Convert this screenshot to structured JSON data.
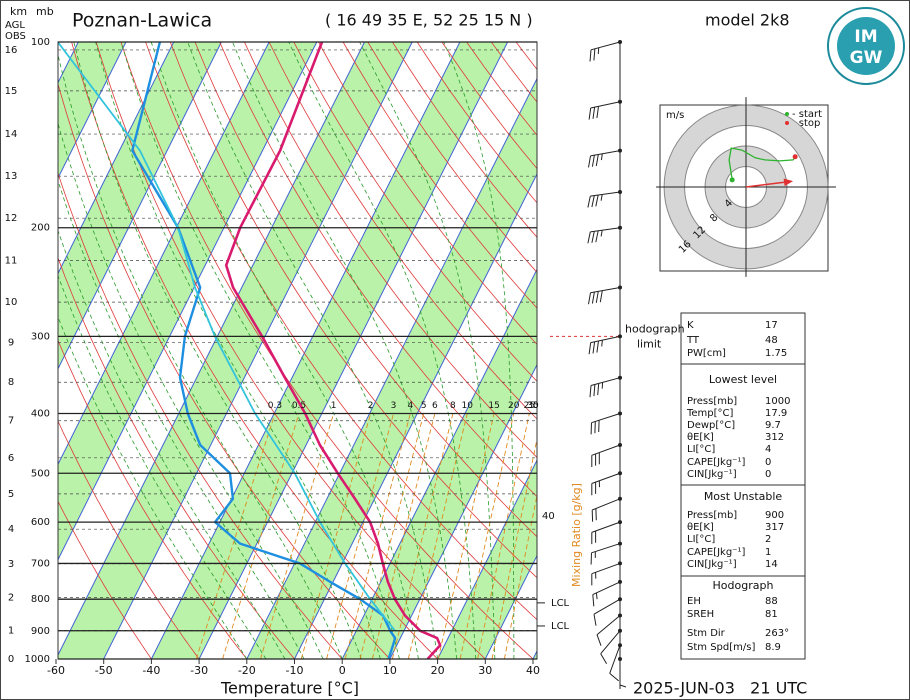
{
  "chart_data": {
    "type": "skewt",
    "title": "Poznan-Lawica",
    "location": "( 16 49 35 E, 52 25 15 N )",
    "model": "model 2k8",
    "valid_time": "2025-JUN-03   21 UTC",
    "xlabel": "Temperature [°C]",
    "corner": {
      "km": "km",
      "mb": "mb",
      "agl": "AGL",
      "obs": "OBS"
    },
    "logo": {
      "top": "IM",
      "bottom": "GW"
    },
    "xlim": [
      -60,
      40
    ],
    "xticks": [
      -60,
      -50,
      -40,
      -30,
      -20,
      -10,
      0,
      10,
      20,
      30,
      40
    ],
    "ylim": [
      1000,
      100
    ],
    "yticks": [
      100,
      200,
      300,
      400,
      500,
      600,
      700,
      800,
      900,
      1000
    ],
    "km_axis": {
      "ticks": [
        0,
        1,
        2,
        3,
        4,
        5,
        6,
        7,
        8,
        9,
        10,
        11,
        12,
        13,
        14,
        15,
        16
      ],
      "pressures": [
        1000,
        899,
        795,
        701,
        616,
        540,
        472,
        411,
        356,
        307,
        264,
        226,
        193,
        165,
        141,
        120,
        103
      ]
    },
    "series": [
      {
        "color": "#d81b6e",
        "pressures": [
          1000,
          950,
          925,
          900,
          850,
          800,
          750,
          700,
          650,
          600,
          550,
          500,
          450,
          400,
          350,
          300,
          250,
          230,
          200,
          150,
          100
        ],
        "values": [
          17.9,
          19.1,
          17.7,
          13.4,
          8.6,
          4.8,
          1.5,
          -1.5,
          -4.6,
          -8.5,
          -14.1,
          -20.4,
          -27.1,
          -33.5,
          -41.5,
          -50.6,
          -61.8,
          -65.6,
          -66.6,
          -66.3,
          -68.9
        ]
      },
      {
        "color": "#1e8fe0",
        "pressures": [
          1000,
          950,
          925,
          900,
          850,
          800,
          750,
          700,
          650,
          600,
          550,
          500,
          450,
          400,
          350,
          300,
          250,
          200,
          150,
          100
        ],
        "values": [
          9.7,
          9.2,
          8.9,
          7.1,
          4,
          -2.5,
          -10.6,
          -18.9,
          -33.5,
          -41,
          -39.7,
          -43,
          -52.2,
          -58.1,
          -63.5,
          -66.8,
          -68.7,
          -79.6,
          -97.3,
          -102.9
        ]
      },
      {
        "color": "#33c4dc",
        "pressures": [
          900,
          800,
          700,
          600,
          500,
          400,
          300,
          250,
          200,
          150,
          100
        ],
        "values": [
          8.1,
          -0.4,
          -9.4,
          -19,
          -29.4,
          -44,
          -60.5,
          -69.8,
          -79.6,
          -95.7,
          -124.3
        ]
      }
    ],
    "mixing_ratio": {
      "label": "Mixing Ratio [g/kg]",
      "values": [
        0.3,
        0.5,
        1,
        2,
        3,
        4,
        5,
        6,
        8,
        10,
        15,
        20,
        25,
        30,
        35
      ],
      "side_label": 40
    },
    "lcl": [
      {
        "label": "LCL",
        "pressure": 811
      },
      {
        "label": "LCL",
        "pressure": 884
      }
    ],
    "hodograph_limit": {
      "text": [
        "hodograph",
        "limit"
      ],
      "pressure": 300
    },
    "winds": {
      "pressures": [
        100,
        125,
        150,
        175,
        200,
        250,
        300,
        350,
        400,
        450,
        500,
        550,
        600,
        650,
        700,
        750,
        800,
        850,
        900,
        950,
        1000
      ],
      "directions": [
        255,
        258,
        260,
        262,
        262,
        260,
        258,
        255,
        252,
        250,
        250,
        248,
        250,
        252,
        250,
        245,
        240,
        230,
        220,
        200,
        180
      ],
      "speeds": [
        25,
        30,
        35,
        35,
        35,
        40,
        35,
        35,
        30,
        30,
        25,
        20,
        20,
        15,
        15,
        15,
        10,
        10,
        10,
        10,
        5
      ]
    },
    "hodograph": {
      "unit": "m/s",
      "rings": [
        4,
        8,
        12,
        16
      ],
      "legend_start": "- start",
      "legend_stop": "- stop",
      "start_color": "#2db32d",
      "stop_color": "#e03030",
      "u": [
        -2.7,
        -3.3,
        -2.9,
        -0.8,
        1.8,
        3.7,
        6.6,
        9.2,
        9.6
      ],
      "v": [
        1.4,
        5.3,
        7.6,
        7.2,
        5.7,
        5.3,
        5.1,
        5.3,
        5.9
      ]
    },
    "indices": [
      {
        "rows": [
          [
            "K",
            17
          ],
          [
            "TT",
            48
          ],
          [
            "PW[cm]",
            1.75
          ]
        ]
      },
      {
        "title": "Lowest level",
        "rows": [
          [
            "Press[mb]",
            1000
          ],
          [
            "Temp[°C]",
            17.9
          ],
          [
            "Dewp[°C]",
            9.7
          ],
          [
            "θE[K]",
            312
          ],
          [
            "LI[°C]",
            4
          ],
          [
            "CAPE[Jkg⁻¹]",
            0
          ],
          [
            "CIN[Jkg⁻¹]",
            0
          ]
        ]
      },
      {
        "title": "Most Unstable",
        "rows": [
          [
            "Press[mb]",
            900
          ],
          [
            "θE[K]",
            317
          ],
          [
            "LI[°C]",
            2
          ],
          [
            "CAPE[Jkg⁻¹]",
            1
          ],
          [
            "CIN[Jkg⁻¹]",
            14
          ]
        ]
      },
      {
        "title": "Hodograph",
        "rows": [
          [
            "EH",
            88
          ],
          [
            "SREH",
            81
          ],
          [
            "Stm Dir",
            {
              "value": 263,
              "label": "263°"
            }
          ],
          [
            "Stm Spd[m/s]",
            8.9
          ]
        ]
      }
    ]
  }
}
